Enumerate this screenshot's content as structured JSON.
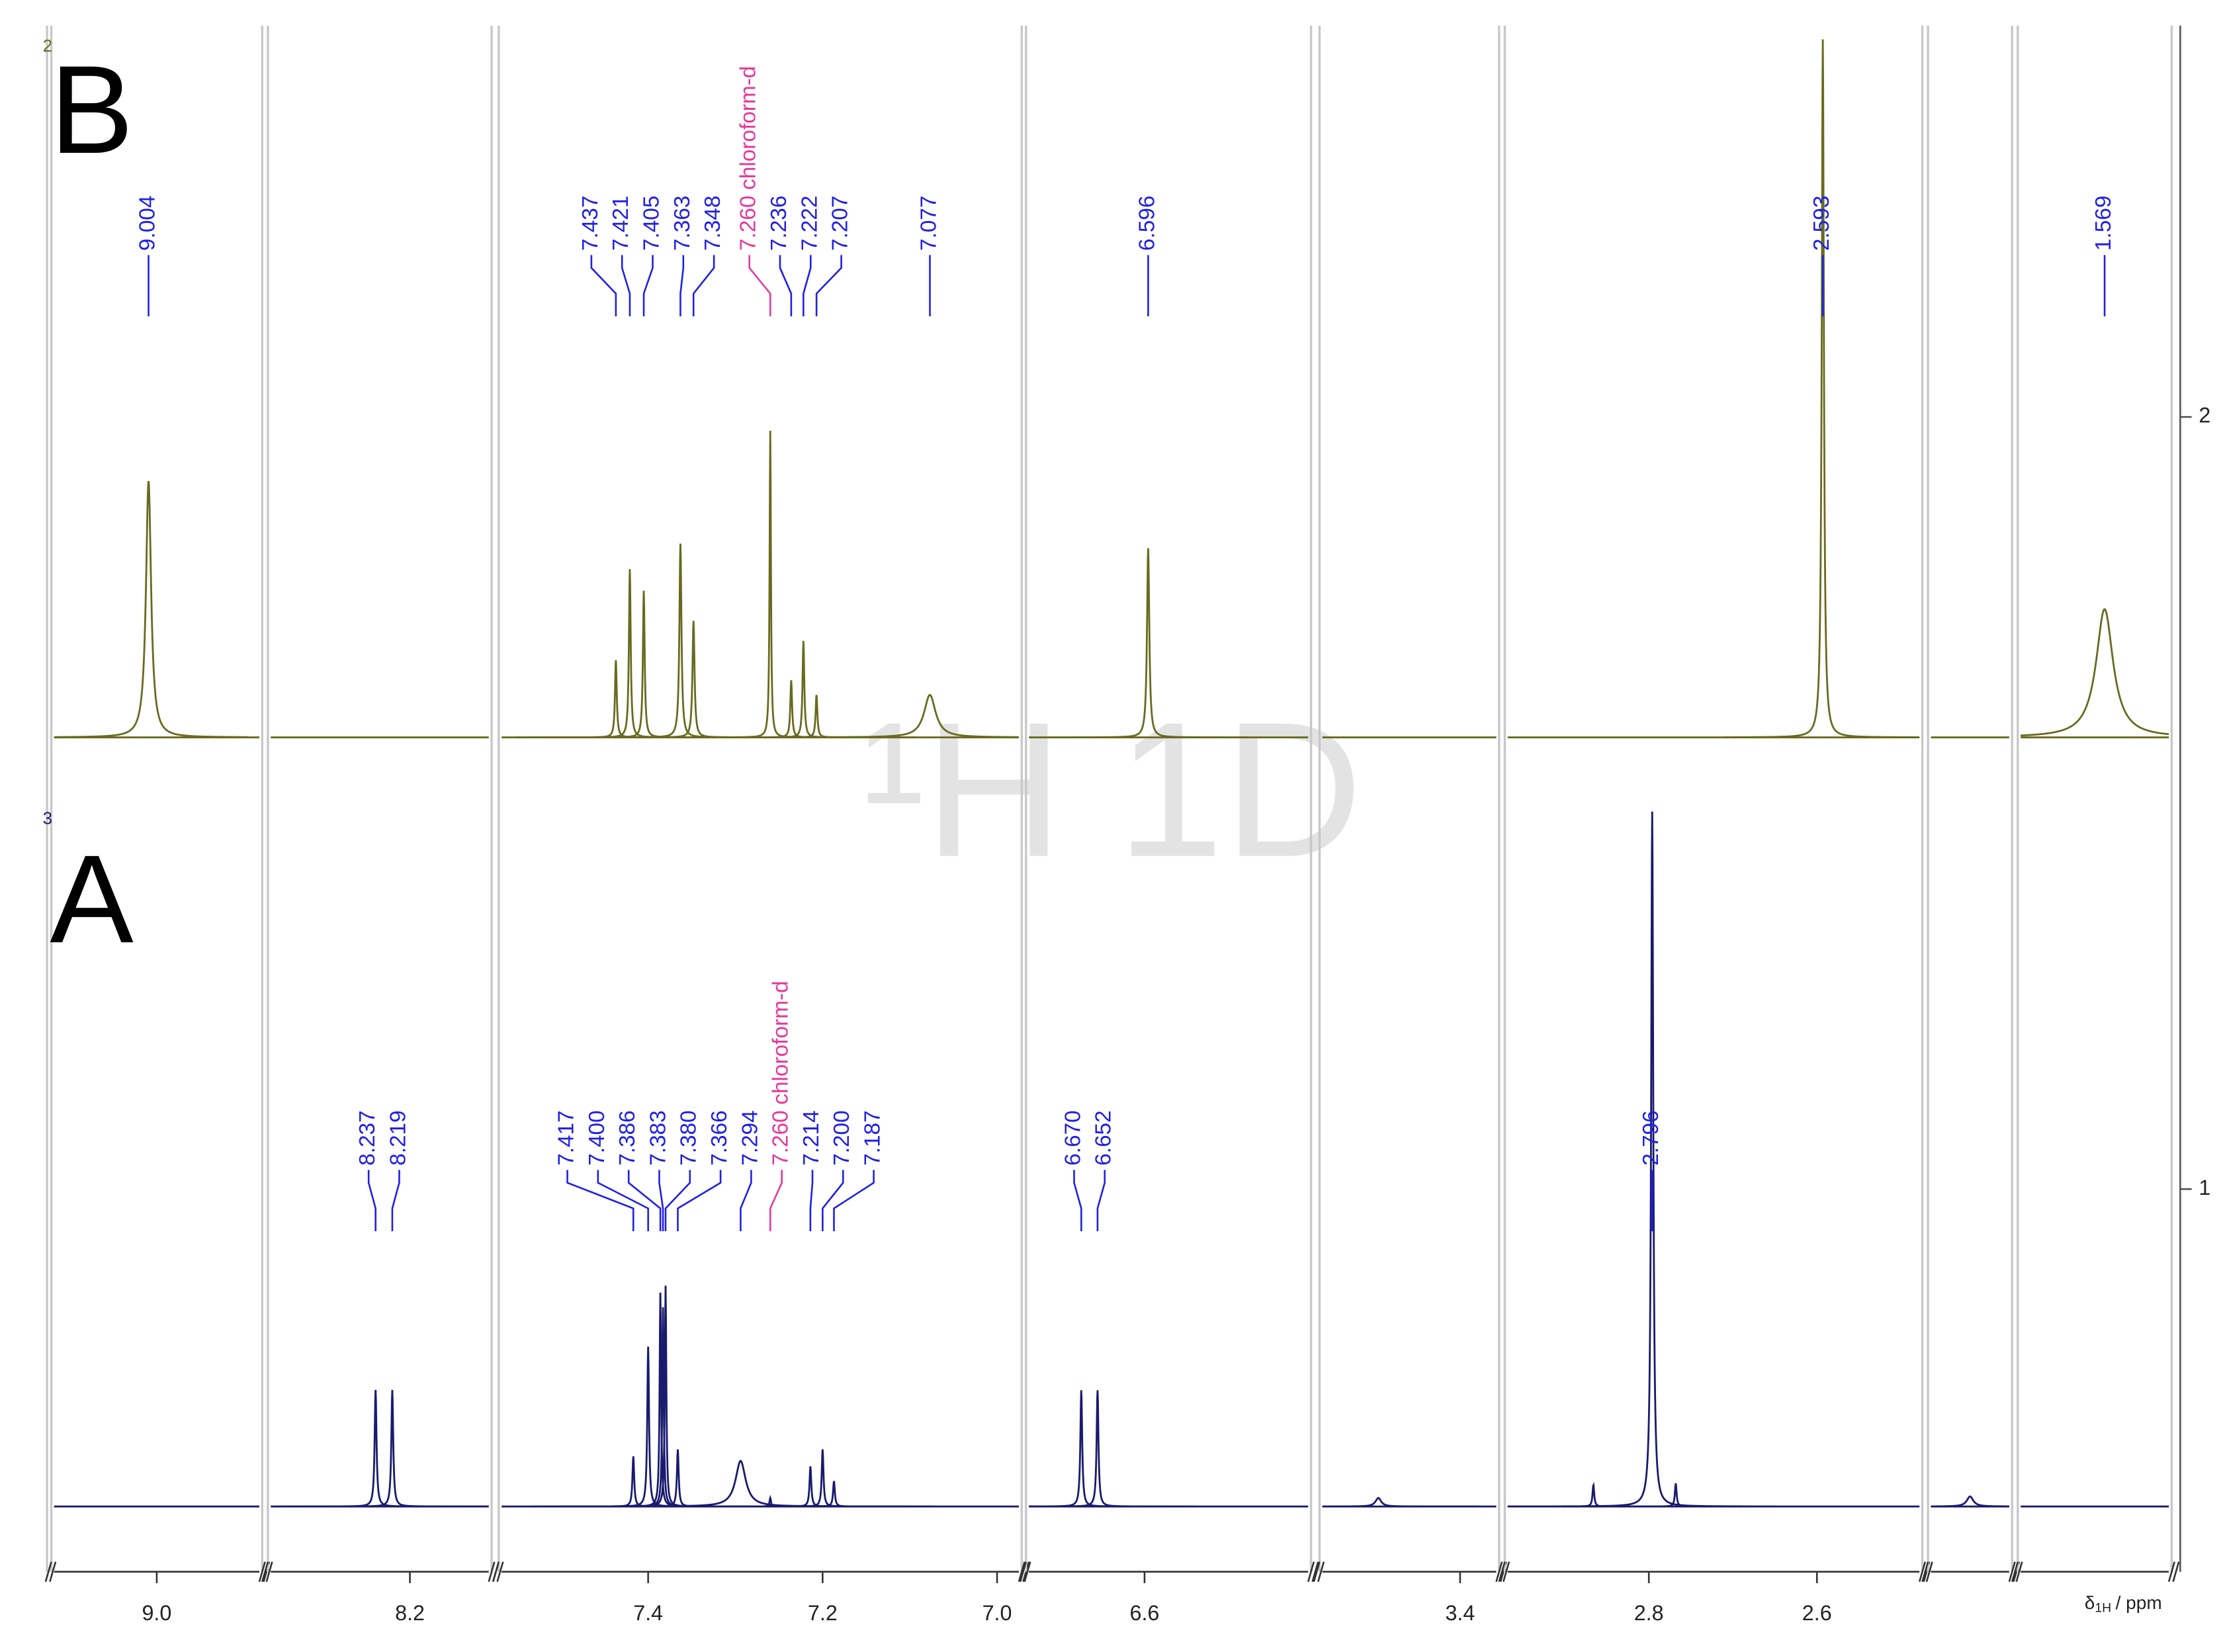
{
  "chart_data": {
    "type": "nmr",
    "watermark": "¹H 1D",
    "xlabel": {
      "symbol": "δ",
      "subscript": "1H",
      "unit": "/ ppm"
    },
    "ylim": [
      0.51,
      2.503
    ],
    "yticks": [
      1,
      2
    ],
    "solvent_color": "#e6389a",
    "segments": [
      {
        "xlim": [
          9.05,
          8.95
        ],
        "xticks": [
          {
            "value": 9.0,
            "label": "9.0"
          }
        ]
      },
      {
        "xlim": [
          8.35,
          8.115
        ],
        "xticks": [
          8.2
        ]
      },
      {
        "xlim": [
          7.568,
          6.975
        ],
        "xticks": [
          7.4,
          7.2,
          {
            "value": 7.0,
            "label": "7.0"
          }
        ]
      },
      {
        "xlim": [
          6.728,
          6.419
        ],
        "xticks": [
          6.6
        ]
      },
      {
        "xlim": [
          3.56,
          3.358
        ],
        "xticks": [
          3.4
        ]
      },
      {
        "xlim": [
          2.968,
          2.478
        ],
        "xticks": [
          2.8,
          2.6
        ]
      },
      {
        "xlim": [
          2.1,
          2.0
        ],
        "xticks": []
      },
      {
        "xlim": [
          1.667,
          1.494
        ],
        "xticks": []
      }
    ],
    "spectra": [
      {
        "name": "B",
        "number": "2",
        "color": "#676b1f",
        "label_color": "#1f1fe6",
        "baseline": 1.585,
        "peaks": [
          {
            "ppm": 9.004,
            "height": 0.332,
            "width": 0.0015,
            "label": "9.004"
          },
          {
            "ppm": 7.437,
            "height": 0.1,
            "width": 0.0012,
            "label": "7.437"
          },
          {
            "ppm": 7.421,
            "height": 0.218,
            "width": 0.0012,
            "label": "7.421"
          },
          {
            "ppm": 7.405,
            "height": 0.19,
            "width": 0.0012,
            "label": "7.405"
          },
          {
            "ppm": 7.363,
            "height": 0.251,
            "width": 0.0014,
            "label": "7.363"
          },
          {
            "ppm": 7.348,
            "height": 0.151,
            "width": 0.0014,
            "label": "7.348"
          },
          {
            "ppm": 7.26,
            "height": 0.397,
            "width": 0.0009,
            "label": "7.260",
            "note": "chloroform-d"
          },
          {
            "ppm": 7.236,
            "height": 0.074,
            "width": 0.0012,
            "label": "7.236"
          },
          {
            "ppm": 7.222,
            "height": 0.125,
            "width": 0.0012,
            "label": "7.222"
          },
          {
            "ppm": 7.207,
            "height": 0.055,
            "width": 0.0012,
            "label": "7.207"
          },
          {
            "ppm": 7.077,
            "height": 0.055,
            "width": 0.008,
            "label": "7.077"
          },
          {
            "ppm": 6.596,
            "height": 0.245,
            "width": 0.0015,
            "label": "6.596"
          },
          {
            "ppm": 2.593,
            "height": 0.904,
            "width": 0.0015,
            "label": "2.593"
          },
          {
            "ppm": 1.569,
            "height": 0.166,
            "width": 0.012,
            "label": "1.569"
          }
        ]
      },
      {
        "name": "A",
        "number": "3",
        "color": "#1a1a6e",
        "label_color": "#1f1fe6",
        "baseline": 0.589,
        "peaks": [
          {
            "ppm": 8.237,
            "height": 0.151,
            "width": 0.0012,
            "label": "8.237"
          },
          {
            "ppm": 8.219,
            "height": 0.151,
            "width": 0.0012,
            "label": "8.219"
          },
          {
            "ppm": 7.417,
            "height": 0.065,
            "width": 0.0012,
            "label": "7.417"
          },
          {
            "ppm": 7.4,
            "height": 0.207,
            "width": 0.0012,
            "label": "7.400"
          },
          {
            "ppm": 7.386,
            "height": 0.277,
            "width": 0.001,
            "label": "7.386"
          },
          {
            "ppm": 7.383,
            "height": 0.258,
            "width": 0.001,
            "label": "7.383"
          },
          {
            "ppm": 7.38,
            "height": 0.286,
            "width": 0.001,
            "label": "7.380"
          },
          {
            "ppm": 7.366,
            "height": 0.074,
            "width": 0.0012,
            "label": "7.366"
          },
          {
            "ppm": 7.294,
            "height": 0.059,
            "width": 0.007,
            "label": "7.294"
          },
          {
            "ppm": 7.26,
            "height": 0.011,
            "width": 0.001,
            "label": "7.260",
            "note": "chloroform-d"
          },
          {
            "ppm": 7.214,
            "height": 0.052,
            "width": 0.0012,
            "label": "7.214"
          },
          {
            "ppm": 7.2,
            "height": 0.074,
            "width": 0.0012,
            "label": "7.200"
          },
          {
            "ppm": 7.187,
            "height": 0.033,
            "width": 0.0012,
            "label": "7.187"
          },
          {
            "ppm": 6.67,
            "height": 0.151,
            "width": 0.0012,
            "label": "6.670"
          },
          {
            "ppm": 6.652,
            "height": 0.151,
            "width": 0.0012,
            "label": "6.652"
          },
          {
            "ppm": 3.495,
            "height": 0.011,
            "width": 0.004
          },
          {
            "ppm": 2.866,
            "height": 0.028,
            "width": 0.0012
          },
          {
            "ppm": 2.796,
            "height": 0.9,
            "width": 0.0015,
            "label": "2.796"
          },
          {
            "ppm": 2.768,
            "height": 0.03,
            "width": 0.0012
          },
          {
            "ppm": 2.05,
            "height": 0.013,
            "width": 0.005
          }
        ]
      }
    ]
  }
}
